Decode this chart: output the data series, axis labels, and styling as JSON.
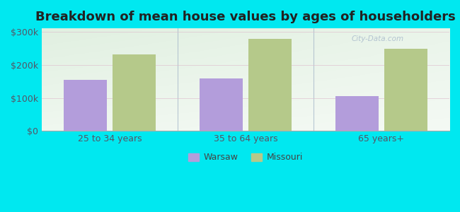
{
  "title": "Breakdown of mean house values by ages of householders",
  "categories": [
    "25 to 34 years",
    "35 to 64 years",
    "65 years+"
  ],
  "warsaw_values": [
    155000,
    158000,
    105000
  ],
  "missouri_values": [
    232000,
    278000,
    248000
  ],
  "warsaw_color": "#b39ddb",
  "missouri_color": "#b5c98a",
  "background_outer": "#00e8f0",
  "ylim": [
    0,
    310000
  ],
  "yticks": [
    0,
    100000,
    200000,
    300000
  ],
  "ytick_labels": [
    "$0",
    "$100k",
    "$200k",
    "$300k"
  ],
  "bar_width": 0.32,
  "legend_warsaw": "Warsaw",
  "legend_missouri": "Missouri",
  "title_fontsize": 13,
  "tick_fontsize": 9,
  "legend_fontsize": 9,
  "watermark": "City-Data.com"
}
